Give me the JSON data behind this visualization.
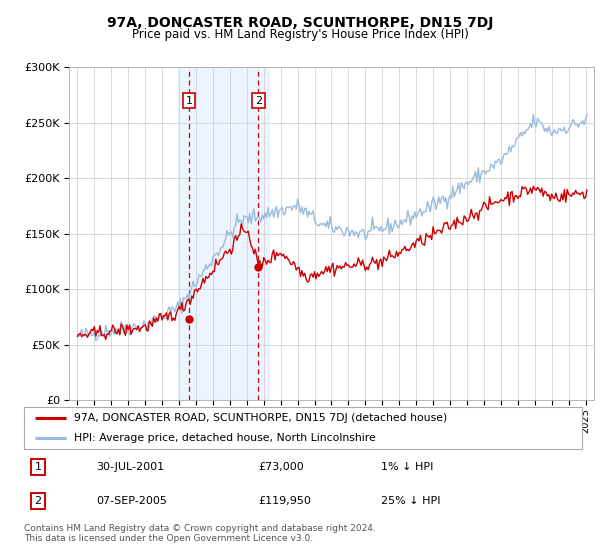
{
  "title": "97A, DONCASTER ROAD, SCUNTHORPE, DN15 7DJ",
  "subtitle": "Price paid vs. HM Land Registry's House Price Index (HPI)",
  "legend_line1": "97A, DONCASTER ROAD, SCUNTHORPE, DN15 7DJ (detached house)",
  "legend_line2": "HPI: Average price, detached house, North Lincolnshire",
  "sale1_date": "30-JUL-2001",
  "sale1_price": "£73,000",
  "sale1_hpi": "1% ↓ HPI",
  "sale2_date": "07-SEP-2005",
  "sale2_price": "£119,950",
  "sale2_hpi": "25% ↓ HPI",
  "footnote1": "Contains HM Land Registry data © Crown copyright and database right 2024.",
  "footnote2": "This data is licensed under the Open Government Licence v3.0.",
  "sale1_year": 2001.58,
  "sale1_value": 73000,
  "sale2_year": 2005.68,
  "sale2_value": 119950,
  "price_color": "#cc0000",
  "hpi_color": "#99bbdd",
  "background_color": "#ffffff",
  "shade_color": "#ddeeff",
  "ylim": [
    0,
    300000
  ],
  "xlim_start": 1994.5,
  "xlim_end": 2025.5
}
